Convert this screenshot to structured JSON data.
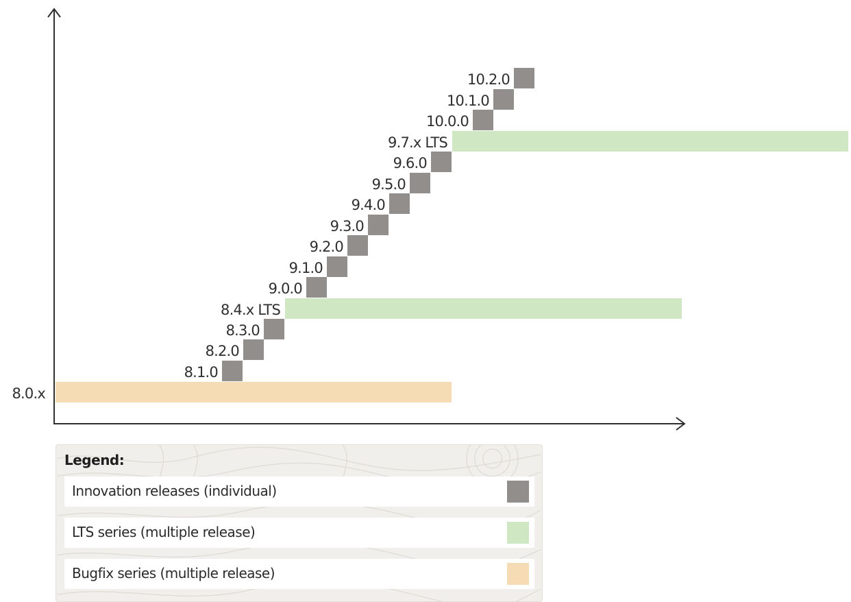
{
  "colors": {
    "innovation": "#928e8b",
    "lts": "#cfe7c2",
    "bugfix": "#f6dcb5",
    "axis": "#2f2f2f"
  },
  "releases": {
    "bugfix": [
      "8.0.x"
    ],
    "innovation": [
      "8.1.0",
      "8.2.0",
      "8.3.0",
      "9.0.0",
      "9.1.0",
      "9.2.0",
      "9.3.0",
      "9.4.0",
      "9.5.0",
      "9.6.0",
      "10.0.0",
      "10.1.0",
      "10.2.0"
    ],
    "lts": [
      "8.4.x LTS",
      "9.7.x LTS"
    ]
  },
  "legend": {
    "title": "Legend:",
    "items": [
      {
        "label": "Innovation releases (individual)",
        "type": "innovation"
      },
      {
        "label": "LTS series (multiple release)",
        "type": "lts"
      },
      {
        "label": "Bugfix series (multiple release)",
        "type": "bugfix"
      }
    ]
  }
}
